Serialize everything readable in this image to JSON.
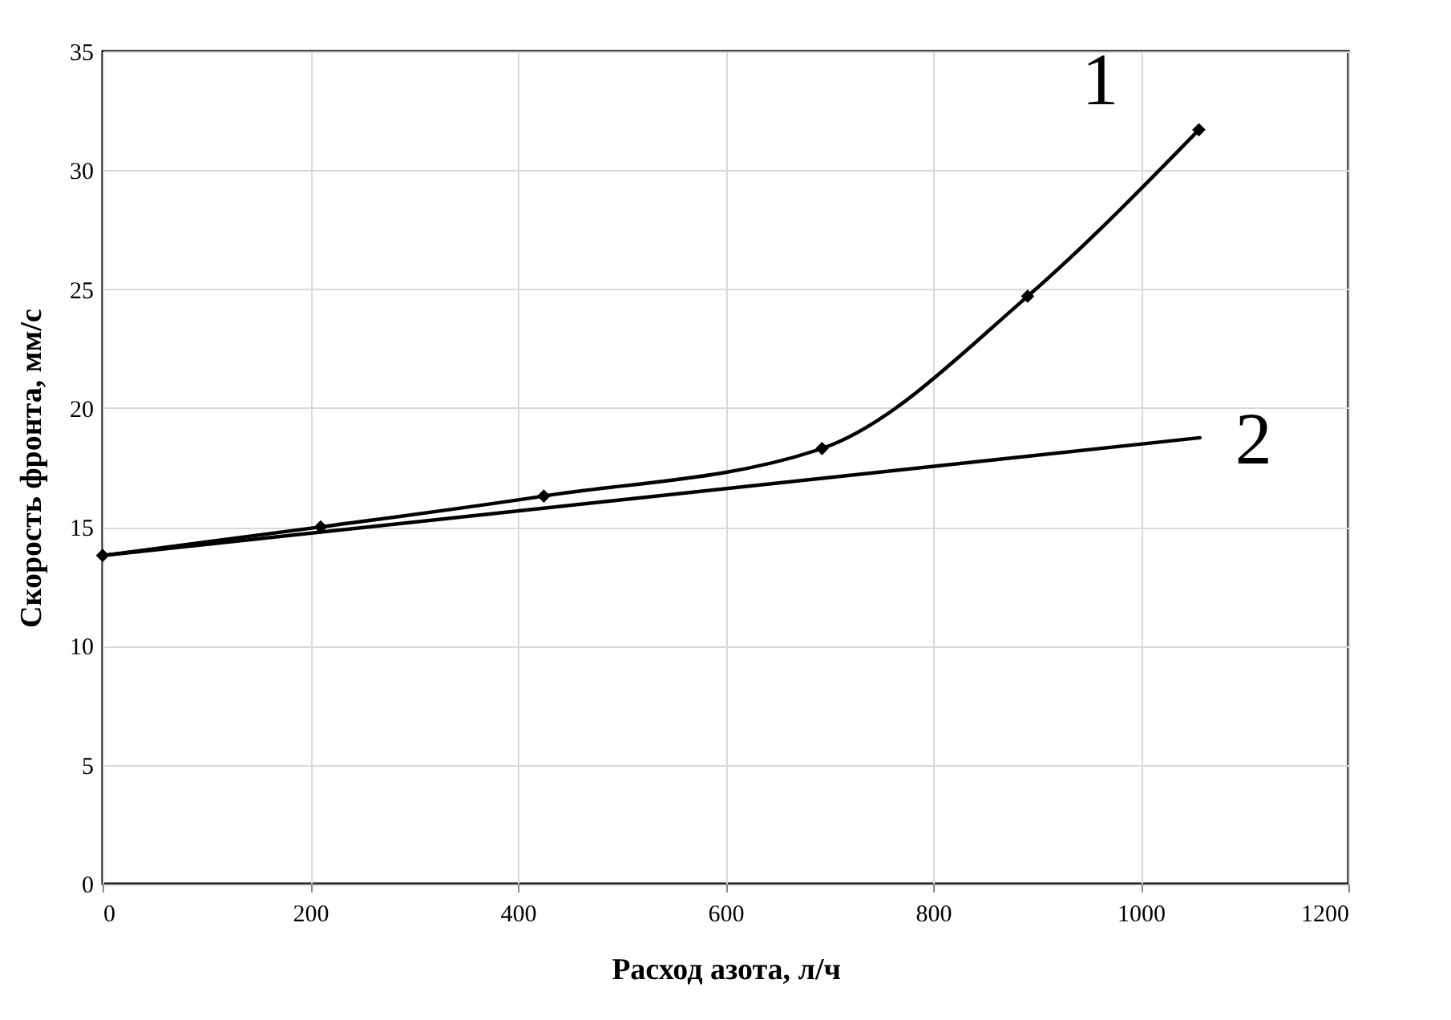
{
  "chart_data": {
    "type": "line",
    "xlabel": "Расход азота, л/ч",
    "ylabel": "Скорость фронта, мм/с",
    "xlim": [
      0,
      1200
    ],
    "xticks": [
      0,
      200,
      400,
      600,
      800,
      1000,
      1200
    ],
    "ylim": [
      0,
      35
    ],
    "yticks": [
      0,
      5,
      10,
      15,
      20,
      25,
      30,
      35
    ],
    "grid": true,
    "line_style": "solid",
    "series": [
      {
        "name": "1",
        "color": "#000000",
        "marker": "diamond",
        "x": [
          0,
          210,
          425,
          693,
          891,
          1056
        ],
        "values": [
          13.8,
          15.0,
          16.3,
          18.3,
          24.7,
          31.7
        ]
      },
      {
        "name": "2",
        "color": "#000000",
        "marker": "none",
        "x": [
          0,
          1057
        ],
        "values": [
          13.8,
          18.75
        ]
      }
    ]
  }
}
